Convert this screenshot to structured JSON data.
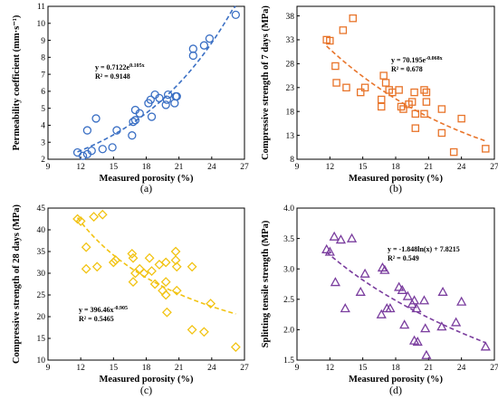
{
  "chart_data": [
    {
      "type": "scatter",
      "panel_label": "(a)",
      "xlabel": "Measured porosity (%)",
      "ylabel": "Permeability coefficient (mm·s⁻¹)",
      "xlim": [
        9,
        27
      ],
      "ylim": [
        2,
        11
      ],
      "xticks": [
        9,
        12,
        15,
        18,
        21,
        24,
        27
      ],
      "yticks": [
        2,
        3,
        4,
        5,
        6,
        7,
        8,
        9,
        10,
        11
      ],
      "marker": "circle",
      "color": "#3a6fc4",
      "trend": {
        "kind": "exp",
        "a": 0.7122,
        "b": 0.105
      },
      "equation": "y = 0.7122e",
      "equation_exp": "0.105x",
      "r2": "R² = 0.9148",
      "equation_position": "middle",
      "points": [
        [
          11.7,
          2.4
        ],
        [
          12.2,
          2.2
        ],
        [
          12.6,
          2.3
        ],
        [
          12.6,
          3.7
        ],
        [
          13.0,
          2.5
        ],
        [
          13.4,
          4.4
        ],
        [
          14.0,
          2.6
        ],
        [
          14.9,
          2.7
        ],
        [
          15.3,
          3.7
        ],
        [
          16.7,
          3.4
        ],
        [
          16.8,
          4.2
        ],
        [
          17.0,
          4.3
        ],
        [
          17.0,
          4.9
        ],
        [
          17.4,
          4.7
        ],
        [
          18.2,
          5.3
        ],
        [
          18.4,
          5.5
        ],
        [
          18.5,
          4.5
        ],
        [
          18.8,
          5.8
        ],
        [
          19.2,
          5.6
        ],
        [
          19.8,
          5.2
        ],
        [
          19.9,
          5.5
        ],
        [
          20.0,
          5.8
        ],
        [
          20.6,
          5.3
        ],
        [
          20.7,
          5.7
        ],
        [
          20.8,
          5.7
        ],
        [
          22.3,
          8.5
        ],
        [
          22.3,
          8.1
        ],
        [
          23.3,
          8.7
        ],
        [
          23.8,
          9.1
        ],
        [
          26.2,
          10.5
        ]
      ]
    },
    {
      "type": "scatter",
      "panel_label": "(b)",
      "xlabel": "Measured porosity (%)",
      "ylabel": "Compressive strength of 7 days (MPa)",
      "xlim": [
        9,
        27
      ],
      "ylim": [
        8,
        40
      ],
      "xticks": [
        9,
        12,
        15,
        18,
        21,
        24,
        27
      ],
      "yticks": [
        8,
        13,
        18,
        23,
        28,
        33,
        38
      ],
      "marker": "square",
      "color": "#e8742a",
      "trend": {
        "kind": "exp",
        "a": 70.195,
        "b": -0.068
      },
      "equation": "y = 70.195e",
      "equation_exp": "-0.068x",
      "r2": "R² = 0.678",
      "equation_position": "upper-right",
      "points": [
        [
          11.7,
          33.0
        ],
        [
          12.0,
          32.8
        ],
        [
          12.5,
          27.5
        ],
        [
          12.6,
          24.0
        ],
        [
          13.2,
          35.0
        ],
        [
          13.5,
          23.0
        ],
        [
          14.1,
          37.5
        ],
        [
          14.8,
          22.0
        ],
        [
          15.2,
          23.0
        ],
        [
          16.7,
          20.5
        ],
        [
          16.7,
          19.0
        ],
        [
          16.9,
          25.5
        ],
        [
          17.1,
          24.0
        ],
        [
          17.4,
          22.5
        ],
        [
          17.7,
          22.0
        ],
        [
          18.3,
          22.5
        ],
        [
          18.5,
          19.0
        ],
        [
          18.7,
          18.5
        ],
        [
          19.2,
          19.5
        ],
        [
          19.5,
          20.0
        ],
        [
          19.7,
          22.0
        ],
        [
          19.8,
          14.5
        ],
        [
          19.8,
          17.5
        ],
        [
          20.6,
          22.5
        ],
        [
          20.6,
          17.5
        ],
        [
          20.8,
          20.0
        ],
        [
          20.8,
          22.0
        ],
        [
          22.2,
          18.5
        ],
        [
          22.2,
          13.5
        ],
        [
          23.3,
          9.5
        ],
        [
          24.0,
          16.5
        ],
        [
          26.2,
          10.2
        ]
      ]
    },
    {
      "type": "scatter",
      "panel_label": "(c)",
      "xlabel": "Measured porosity (%)",
      "ylabel": "Compressive strength of 28 days (MPa)",
      "xlim": [
        9,
        27
      ],
      "ylim": [
        10,
        45
      ],
      "xticks": [
        9,
        12,
        15,
        18,
        21,
        24,
        27
      ],
      "yticks": [
        10,
        15,
        20,
        25,
        30,
        35,
        40,
        45
      ],
      "marker": "diamond",
      "color": "#f2c312",
      "trend": {
        "kind": "power",
        "a": 396.46,
        "b": -0.905
      },
      "equation": "y = 396.46x",
      "equation_exp": "-0.905",
      "r2": "R² = 0.5465",
      "equation_position": "lower-middle",
      "points": [
        [
          11.7,
          42.5
        ],
        [
          12.0,
          42.0
        ],
        [
          12.5,
          36.0
        ],
        [
          12.5,
          31.0
        ],
        [
          13.2,
          43.0
        ],
        [
          13.5,
          31.5
        ],
        [
          14.0,
          43.5
        ],
        [
          15.0,
          32.5
        ],
        [
          15.2,
          33.0
        ],
        [
          16.7,
          34.5
        ],
        [
          16.8,
          33.5
        ],
        [
          16.8,
          28.0
        ],
        [
          17.0,
          30.0
        ],
        [
          17.4,
          31.0
        ],
        [
          17.8,
          30.0
        ],
        [
          18.3,
          33.5
        ],
        [
          18.5,
          30.5
        ],
        [
          18.8,
          27.5
        ],
        [
          19.2,
          32.0
        ],
        [
          19.5,
          26.0
        ],
        [
          19.8,
          28.0
        ],
        [
          19.8,
          25.0
        ],
        [
          19.8,
          32.5
        ],
        [
          19.9,
          21.0
        ],
        [
          20.7,
          35.0
        ],
        [
          20.7,
          33.0
        ],
        [
          20.8,
          31.5
        ],
        [
          20.8,
          26.0
        ],
        [
          22.2,
          31.5
        ],
        [
          22.2,
          17.0
        ],
        [
          23.3,
          16.5
        ],
        [
          23.9,
          23.0
        ],
        [
          26.2,
          13.0
        ]
      ]
    },
    {
      "type": "scatter",
      "panel_label": "(d)",
      "xlabel": "Measured porosity (%)",
      "ylabel": "Splitting tensile strength (MPa)",
      "xlim": [
        9,
        27
      ],
      "ylim": [
        1.5,
        4.0
      ],
      "xticks": [
        9,
        12,
        15,
        18,
        21,
        24,
        27
      ],
      "yticks": [
        1.5,
        2.0,
        2.5,
        3.0,
        3.5,
        4.0
      ],
      "marker": "triangle",
      "color": "#7a3d9e",
      "trend": {
        "kind": "log",
        "a": -1.848,
        "b": 7.8215
      },
      "equation": "y = -1.848ln(x) + 7.8215",
      "equation_exp": "",
      "r2": "R² = 0.549",
      "equation_position": "upper-right",
      "points": [
        [
          11.7,
          3.32
        ],
        [
          12.0,
          3.28
        ],
        [
          12.4,
          3.53
        ],
        [
          12.5,
          2.78
        ],
        [
          13.0,
          3.48
        ],
        [
          13.4,
          2.35
        ],
        [
          14.0,
          3.5
        ],
        [
          14.8,
          2.62
        ],
        [
          15.2,
          2.92
        ],
        [
          16.7,
          2.25
        ],
        [
          16.8,
          3.02
        ],
        [
          17.0,
          2.98
        ],
        [
          17.2,
          2.35
        ],
        [
          17.5,
          2.35
        ],
        [
          18.3,
          2.7
        ],
        [
          18.6,
          2.65
        ],
        [
          18.8,
          2.08
        ],
        [
          19.1,
          2.55
        ],
        [
          19.5,
          2.42
        ],
        [
          19.7,
          2.48
        ],
        [
          19.7,
          1.82
        ],
        [
          19.9,
          2.35
        ],
        [
          20.0,
          1.8
        ],
        [
          20.6,
          2.48
        ],
        [
          20.7,
          2.02
        ],
        [
          20.8,
          1.58
        ],
        [
          22.2,
          2.05
        ],
        [
          22.3,
          2.62
        ],
        [
          23.5,
          2.12
        ],
        [
          24.0,
          2.46
        ],
        [
          26.2,
          1.72
        ]
      ]
    }
  ]
}
